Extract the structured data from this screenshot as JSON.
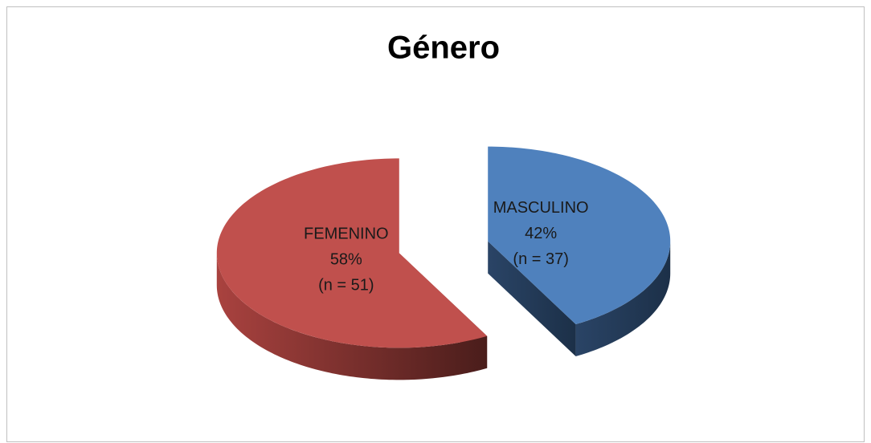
{
  "chart_data": {
    "type": "pie",
    "title": "Género",
    "categories": [
      "MASCULINO",
      "FEMENINO"
    ],
    "values": [
      42,
      58
    ],
    "value_labels": [
      "42%",
      "58%"
    ],
    "count_labels": [
      "(n = 37)",
      "(n = 51)"
    ],
    "colors": [
      "#4f81bd",
      "#c0504d"
    ]
  }
}
